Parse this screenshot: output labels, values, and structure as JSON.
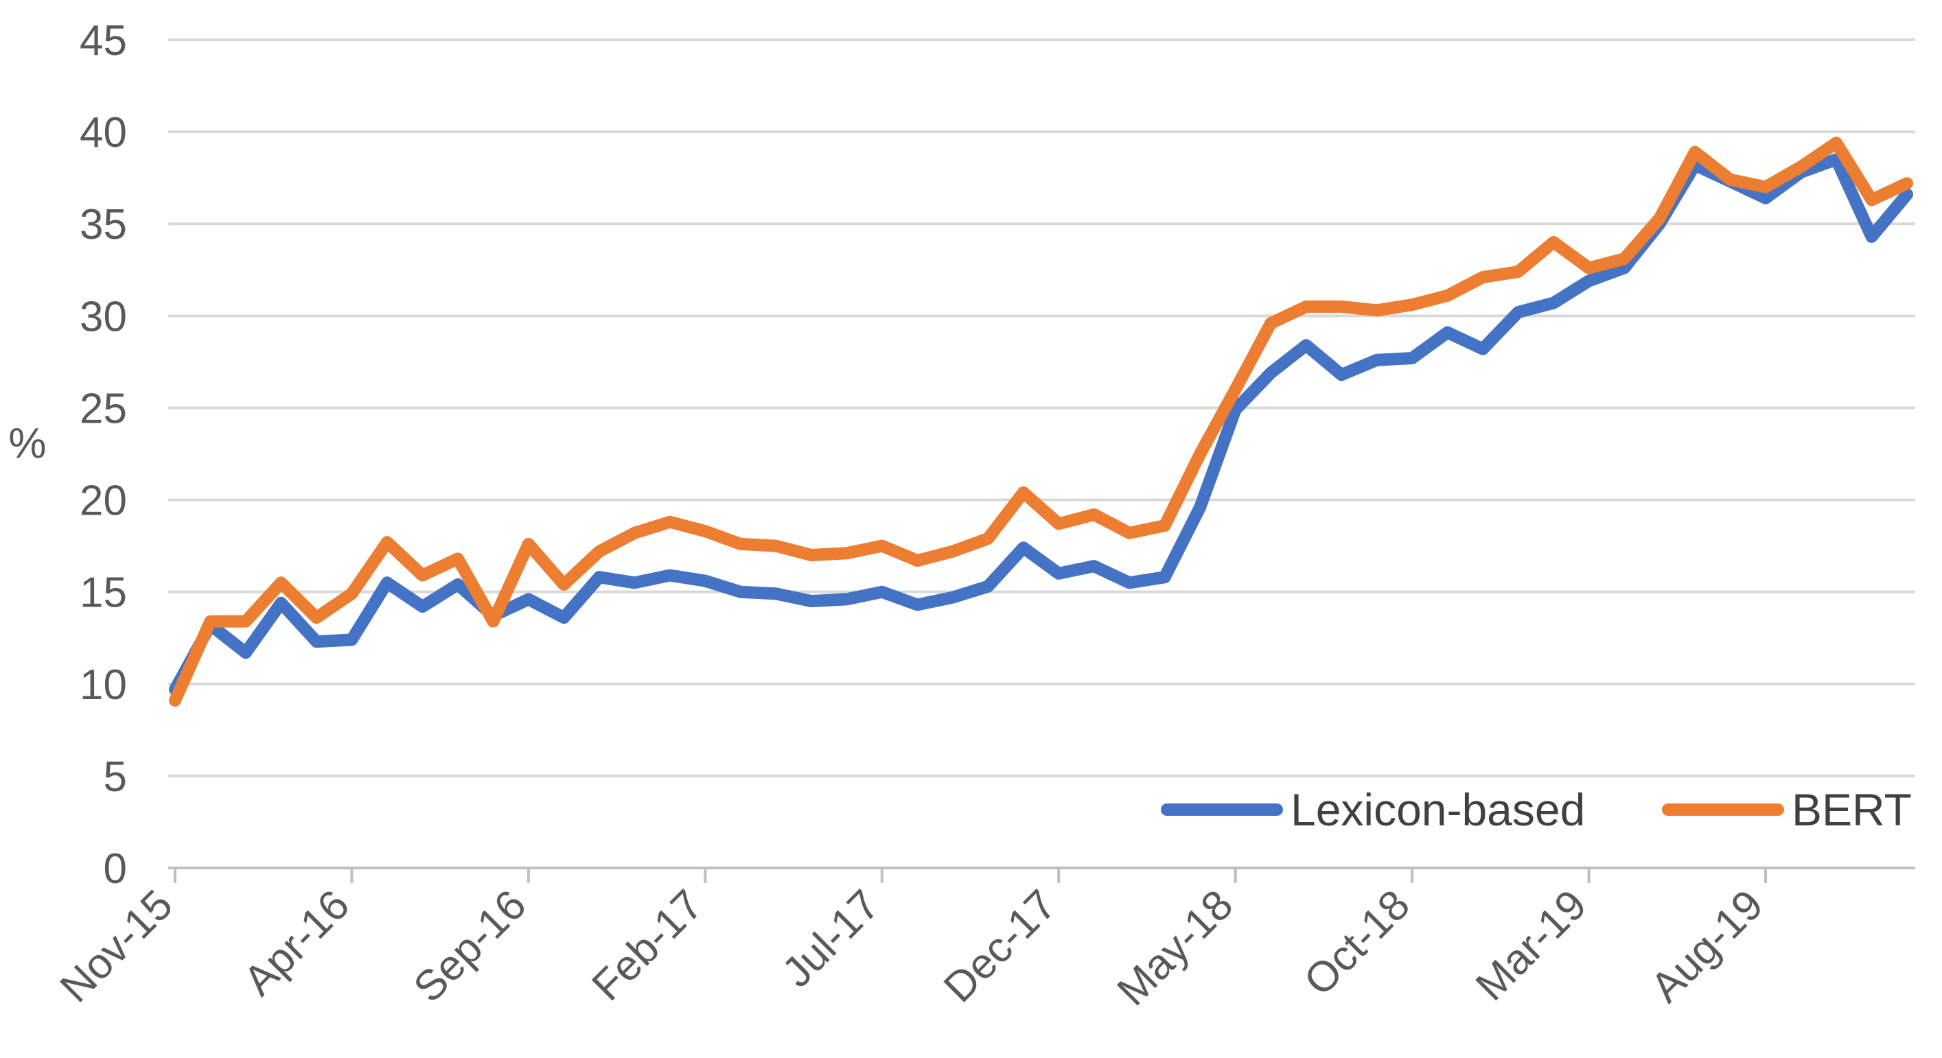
{
  "chart_data": {
    "type": "line",
    "title": "",
    "xlabel": "",
    "ylabel": "%",
    "ylim": [
      0,
      45
    ],
    "yticks": [
      0,
      5,
      10,
      15,
      20,
      25,
      30,
      35,
      40,
      45
    ],
    "grid": true,
    "legend_position": "bottom-right",
    "x": [
      "Nov-15",
      "Dec-15",
      "Jan-16",
      "Feb-16",
      "Mar-16",
      "Apr-16",
      "May-16",
      "Jun-16",
      "Jul-16",
      "Aug-16",
      "Sep-16",
      "Oct-16",
      "Nov-16",
      "Dec-16",
      "Jan-17",
      "Feb-17",
      "Mar-17",
      "Apr-17",
      "May-17",
      "Jun-17",
      "Jul-17",
      "Aug-17",
      "Sep-17",
      "Oct-17",
      "Nov-17",
      "Dec-17",
      "Jan-18",
      "Feb-18",
      "Mar-18",
      "Apr-18",
      "May-18",
      "Jun-18",
      "Jul-18",
      "Aug-18",
      "Sep-18",
      "Oct-18",
      "Nov-18",
      "Dec-18",
      "Jan-19",
      "Feb-19",
      "Mar-19",
      "Apr-19",
      "May-19",
      "Jun-19",
      "Jul-19",
      "Aug-19",
      "Sep-19",
      "Oct-19",
      "Nov-19",
      "Dec-19"
    ],
    "x_tick_labels": [
      "Nov-15",
      "Apr-16",
      "Sep-16",
      "Feb-17",
      "Jul-17",
      "Dec-17",
      "May-18",
      "Oct-18",
      "Mar-19",
      "Aug-19"
    ],
    "x_tick_every": 5,
    "series": [
      {
        "name": "Lexicon-based",
        "color": "#4472C4",
        "values": [
          9.7,
          13.2,
          11.7,
          14.4,
          12.3,
          12.4,
          15.5,
          14.2,
          15.4,
          13.7,
          14.6,
          13.6,
          15.8,
          15.5,
          15.9,
          15.6,
          15.0,
          14.9,
          14.5,
          14.6,
          15.0,
          14.3,
          14.7,
          15.3,
          17.4,
          16.0,
          16.4,
          15.5,
          15.8,
          19.6,
          24.9,
          26.9,
          28.4,
          26.8,
          27.6,
          27.7,
          29.1,
          28.2,
          30.2,
          30.7,
          31.9,
          32.6,
          35.0,
          38.2,
          37.3,
          36.4,
          37.8,
          38.5,
          34.3,
          36.6
        ]
      },
      {
        "name": "BERT",
        "color": "#ED7D31",
        "values": [
          9.1,
          13.4,
          13.4,
          15.5,
          13.6,
          14.9,
          17.7,
          15.9,
          16.8,
          13.4,
          17.6,
          15.4,
          17.2,
          18.2,
          18.8,
          18.3,
          17.6,
          17.5,
          17.0,
          17.1,
          17.5,
          16.7,
          17.2,
          17.9,
          20.4,
          18.7,
          19.2,
          18.2,
          18.6,
          22.5,
          26.0,
          29.6,
          30.5,
          30.5,
          30.3,
          30.6,
          31.1,
          32.1,
          32.4,
          34.0,
          32.6,
          33.1,
          35.3,
          38.9,
          37.4,
          37.0,
          38.1,
          39.4,
          36.3,
          37.2
        ]
      }
    ]
  }
}
